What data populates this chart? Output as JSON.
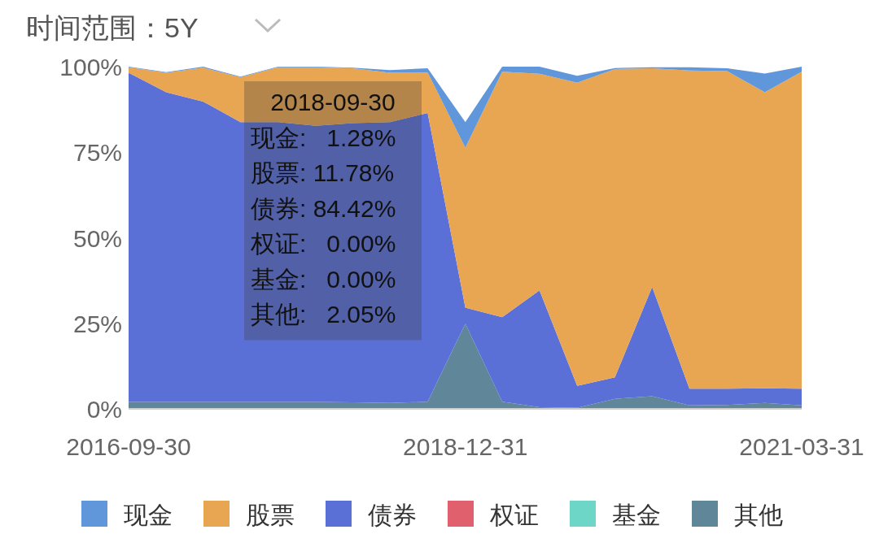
{
  "chart_data": {
    "type": "area",
    "stacked": true,
    "title": "时间范围：5Y",
    "x": [
      "2016-09-30",
      "2016-12-31",
      "2017-03-31",
      "2017-06-30",
      "2017-09-30",
      "2017-12-31",
      "2018-03-31",
      "2018-06-30",
      "2018-09-30",
      "2018-12-31",
      "2019-03-31",
      "2019-06-30",
      "2019-09-30",
      "2019-12-31",
      "2020-03-31",
      "2020-06-30",
      "2020-09-30",
      "2020-12-31",
      "2021-03-31"
    ],
    "xlim": [
      "2016-09-30",
      "2021-03-31"
    ],
    "xticks": [
      "2016-09-30",
      "2018-12-31",
      "2021-03-31"
    ],
    "ylim": [
      0,
      100
    ],
    "yticks": [
      {
        "value": 0,
        "label": "0%"
      },
      {
        "value": 25,
        "label": "25%"
      },
      {
        "value": 50,
        "label": "50%"
      },
      {
        "value": 75,
        "label": "75%"
      },
      {
        "value": 100,
        "label": "100%"
      }
    ],
    "legend": "bottom",
    "series": [
      {
        "name": "其他",
        "color": "#5f8799",
        "values": [
          2.0,
          2.0,
          2.0,
          2.0,
          2.0,
          2.0,
          1.9,
          1.7,
          2.05,
          24.9,
          2.1,
          0.5,
          0.3,
          2.9,
          3.7,
          1.0,
          1.1,
          1.7,
          1.0
        ]
      },
      {
        "name": "基金",
        "color": "#6dd6c6",
        "values": [
          null,
          null,
          null,
          null,
          null,
          null,
          null,
          null,
          null,
          null,
          null,
          null,
          null,
          null,
          null,
          null,
          null,
          null,
          null
        ]
      },
      {
        "name": "权证",
        "color": "#e0606e",
        "values": [
          null,
          null,
          null,
          null,
          null,
          null,
          null,
          null,
          null,
          null,
          null,
          null,
          null,
          null,
          null,
          null,
          null,
          null,
          null
        ]
      },
      {
        "name": "债券",
        "color": "#5b70d6",
        "values": [
          96.2,
          90.5,
          87.8,
          81.8,
          81.8,
          80.7,
          81.6,
          82.1,
          84.42,
          4.7,
          24.7,
          34.1,
          6.4,
          6.3,
          31.9,
          4.9,
          4.8,
          4.3,
          4.9
        ]
      },
      {
        "name": "股票",
        "color": "#e8a552",
        "values": [
          1.6,
          5.7,
          9.9,
          13.1,
          16.0,
          17.1,
          16.0,
          14.4,
          11.78,
          46.7,
          71.7,
          63.3,
          88.6,
          90.1,
          63.9,
          93.0,
          92.8,
          86.5,
          92.6
        ]
      },
      {
        "name": "现金",
        "color": "#6097db",
        "values": [
          0.2,
          0.2,
          0.3,
          0.2,
          0.2,
          0.2,
          0.2,
          0.8,
          1.28,
          7.5,
          1.5,
          2.1,
          2.0,
          0.3,
          0.3,
          0.9,
          0.8,
          5.5,
          1.5
        ]
      }
    ],
    "annotations": [
      "2018-09-30",
      "现金:   1.28%",
      "股票: 11.78%",
      "债券: 84.42%",
      "权证:   0.00%",
      "基金:   0.00%",
      "其他:   2.05%"
    ]
  }
}
